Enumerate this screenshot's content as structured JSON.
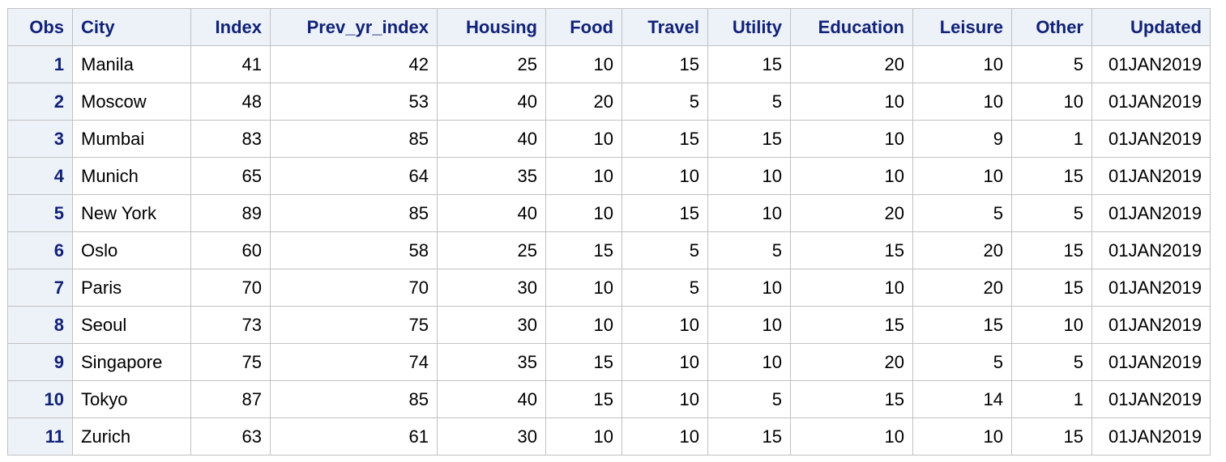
{
  "table": {
    "columns": [
      {
        "key": "obs",
        "label": "Obs",
        "align": "right"
      },
      {
        "key": "city",
        "label": "City",
        "align": "left"
      },
      {
        "key": "index",
        "label": "Index",
        "align": "right"
      },
      {
        "key": "prev_yr_index",
        "label": "Prev_yr_index",
        "align": "right"
      },
      {
        "key": "housing",
        "label": "Housing",
        "align": "right"
      },
      {
        "key": "food",
        "label": "Food",
        "align": "right"
      },
      {
        "key": "travel",
        "label": "Travel",
        "align": "right"
      },
      {
        "key": "utility",
        "label": "Utility",
        "align": "right"
      },
      {
        "key": "education",
        "label": "Education",
        "align": "right"
      },
      {
        "key": "leisure",
        "label": "Leisure",
        "align": "right"
      },
      {
        "key": "other",
        "label": "Other",
        "align": "right"
      },
      {
        "key": "updated",
        "label": "Updated",
        "align": "right"
      }
    ],
    "rows": [
      {
        "obs": "1",
        "city": "Manila",
        "index": "41",
        "prev_yr_index": "42",
        "housing": "25",
        "food": "10",
        "travel": "15",
        "utility": "15",
        "education": "20",
        "leisure": "10",
        "other": "5",
        "updated": "01JAN2019"
      },
      {
        "obs": "2",
        "city": "Moscow",
        "index": "48",
        "prev_yr_index": "53",
        "housing": "40",
        "food": "20",
        "travel": "5",
        "utility": "5",
        "education": "10",
        "leisure": "10",
        "other": "10",
        "updated": "01JAN2019"
      },
      {
        "obs": "3",
        "city": "Mumbai",
        "index": "83",
        "prev_yr_index": "85",
        "housing": "40",
        "food": "10",
        "travel": "15",
        "utility": "15",
        "education": "10",
        "leisure": "9",
        "other": "1",
        "updated": "01JAN2019"
      },
      {
        "obs": "4",
        "city": "Munich",
        "index": "65",
        "prev_yr_index": "64",
        "housing": "35",
        "food": "10",
        "travel": "10",
        "utility": "10",
        "education": "10",
        "leisure": "10",
        "other": "15",
        "updated": "01JAN2019"
      },
      {
        "obs": "5",
        "city": "New York",
        "index": "89",
        "prev_yr_index": "85",
        "housing": "40",
        "food": "10",
        "travel": "15",
        "utility": "10",
        "education": "20",
        "leisure": "5",
        "other": "5",
        "updated": "01JAN2019"
      },
      {
        "obs": "6",
        "city": "Oslo",
        "index": "60",
        "prev_yr_index": "58",
        "housing": "25",
        "food": "15",
        "travel": "5",
        "utility": "5",
        "education": "15",
        "leisure": "20",
        "other": "15",
        "updated": "01JAN2019"
      },
      {
        "obs": "7",
        "city": "Paris",
        "index": "70",
        "prev_yr_index": "70",
        "housing": "30",
        "food": "10",
        "travel": "5",
        "utility": "10",
        "education": "10",
        "leisure": "20",
        "other": "15",
        "updated": "01JAN2019"
      },
      {
        "obs": "8",
        "city": "Seoul",
        "index": "73",
        "prev_yr_index": "75",
        "housing": "30",
        "food": "10",
        "travel": "10",
        "utility": "10",
        "education": "15",
        "leisure": "15",
        "other": "10",
        "updated": "01JAN2019"
      },
      {
        "obs": "9",
        "city": "Singapore",
        "index": "75",
        "prev_yr_index": "74",
        "housing": "35",
        "food": "15",
        "travel": "10",
        "utility": "10",
        "education": "20",
        "leisure": "5",
        "other": "5",
        "updated": "01JAN2019"
      },
      {
        "obs": "10",
        "city": "Tokyo",
        "index": "87",
        "prev_yr_index": "85",
        "housing": "40",
        "food": "15",
        "travel": "10",
        "utility": "5",
        "education": "15",
        "leisure": "14",
        "other": "1",
        "updated": "01JAN2019"
      },
      {
        "obs": "11",
        "city": "Zurich",
        "index": "63",
        "prev_yr_index": "61",
        "housing": "30",
        "food": "10",
        "travel": "10",
        "utility": "15",
        "education": "10",
        "leisure": "10",
        "other": "15",
        "updated": "01JAN2019"
      }
    ]
  },
  "colors": {
    "header_bg": "#edf2f9",
    "header_text": "#112277",
    "grid": "#c1c1c1",
    "body_text": "#000000"
  }
}
